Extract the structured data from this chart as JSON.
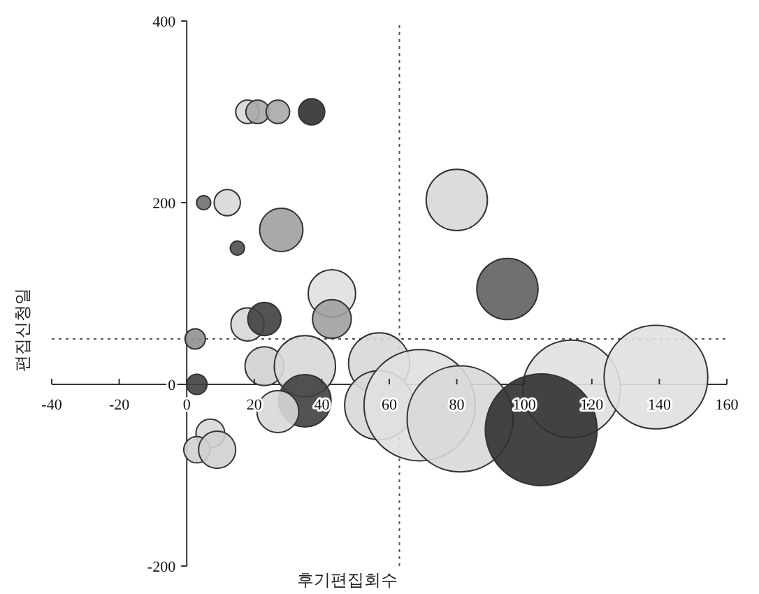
{
  "chart_data": {
    "type": "bubble",
    "xlabel": "후기편집회수",
    "ylabel": "편집신청일",
    "xlim": [
      -40,
      160
    ],
    "ylim": [
      -200,
      400
    ],
    "xticks": [
      -40,
      -20,
      0,
      20,
      40,
      60,
      80,
      100,
      120,
      140,
      160
    ],
    "yticks": [
      -200,
      0,
      200,
      400
    ],
    "x": [
      18,
      21,
      27,
      37,
      5,
      12,
      15,
      28,
      2.5,
      3,
      18,
      23,
      43,
      43,
      23,
      35,
      35,
      27,
      7,
      3,
      9,
      57,
      57,
      69,
      81,
      80,
      95,
      114,
      105,
      139
    ],
    "values": [
      300,
      300,
      300,
      300,
      200,
      200,
      150,
      170,
      50,
      0,
      66,
      72,
      100,
      72,
      20,
      20,
      -18,
      -30,
      -54,
      -72,
      -72,
      23,
      -23,
      -23,
      -38,
      203,
      105,
      -5,
      -50,
      8
    ],
    "sizes": [
      0.044,
      0.044,
      0.044,
      0.055,
      0.016,
      0.055,
      0.016,
      0.15,
      0.033,
      0.033,
      0.088,
      0.088,
      0.18,
      0.12,
      0.12,
      0.3,
      0.22,
      0.14,
      0.066,
      0.055,
      0.11,
      0.3,
      0.38,
      0.99,
      0.9,
      0.3,
      0.3,
      0.76,
      1,
      0.86
    ],
    "colors": [
      "#d8d8d8",
      "#a8a8a8",
      "#a8a8a8",
      "#303030",
      "#707070",
      "#d8d8d8",
      "#505050",
      "#a0a0a0",
      "#909090",
      "#404040",
      "#d8d8d8",
      "#404040",
      "#e0e0e0",
      "#a0a0a0",
      "#d0d0d0",
      "#d8d8d8",
      "#404040",
      "#d8d8d8",
      "#d8d8d8",
      "#d0d0d0",
      "#d0d0d0",
      "#d8d8d8",
      "#d8d8d8",
      "#e0e0e0",
      "#d8d8d8",
      "#d8d8d8",
      "#606060",
      "#e0e0e0",
      "#303030",
      "#e0e0e0"
    ],
    "ref_lines": [
      {
        "axis": "y",
        "value": 50,
        "line_style": "dotted"
      },
      {
        "axis": "x",
        "value": 63,
        "line_style": "dotted"
      }
    ],
    "grid": false
  }
}
